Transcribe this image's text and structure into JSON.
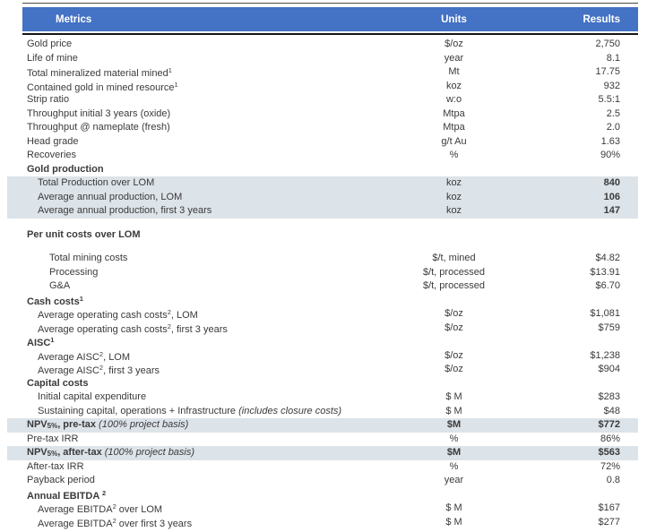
{
  "colors": {
    "header_bg": "#4472C4",
    "header_text": "#FFFFFF",
    "highlight_bg": "#DCE3E9",
    "text": "#3A3A3A",
    "rule_top": "#4A4A4A",
    "rule_header": "#161616"
  },
  "table": {
    "header": {
      "metrics": "Metrics",
      "units": "Units",
      "results": "Results"
    },
    "rows": [
      {
        "metric": [
          [
            "t",
            "Gold price"
          ]
        ],
        "unit": "$/oz",
        "result": "2,750"
      },
      {
        "metric": [
          [
            "t",
            "Life of mine"
          ]
        ],
        "unit": "year",
        "result": "8.1"
      },
      {
        "metric": [
          [
            "t",
            "Total mineralized material mined"
          ],
          [
            "sup",
            "1"
          ]
        ],
        "unit": "Mt",
        "result": "17.75"
      },
      {
        "metric": [
          [
            "t",
            "Contained gold in mined resource"
          ],
          [
            "sup",
            "1"
          ]
        ],
        "unit": "koz",
        "result": "932"
      },
      {
        "metric": [
          [
            "t",
            "Strip ratio"
          ]
        ],
        "unit": "w:o",
        "result": "5.5:1"
      },
      {
        "metric": [
          [
            "t",
            "Throughput initial 3 years (oxide)"
          ]
        ],
        "unit": "Mtpa",
        "result": "2.5"
      },
      {
        "metric": [
          [
            "t",
            "Throughput @ nameplate (fresh)"
          ]
        ],
        "unit": "Mtpa",
        "result": "2.0"
      },
      {
        "metric": [
          [
            "t",
            "Head grade"
          ]
        ],
        "unit": "g/t Au",
        "result": "1.63"
      },
      {
        "metric": [
          [
            "t",
            "Recoveries"
          ]
        ],
        "unit": "%",
        "result": "90%"
      },
      {
        "metric": [
          [
            "t",
            "Gold production"
          ]
        ],
        "unit": "",
        "result": "",
        "bold": true
      },
      {
        "metric": [
          [
            "t",
            "Total Production over LOM"
          ]
        ],
        "unit": "koz",
        "result": "840",
        "indent": 1,
        "highlight": true,
        "result_bold": true
      },
      {
        "metric": [
          [
            "t",
            "Average annual production, LOM"
          ]
        ],
        "unit": "koz",
        "result": "106",
        "indent": 1,
        "highlight": true,
        "result_bold": true
      },
      {
        "metric": [
          [
            "t",
            "Average annual production, first 3 years"
          ]
        ],
        "unit": "koz",
        "result": "147",
        "indent": 1,
        "highlight": true,
        "result_bold": true
      },
      {
        "metric": [
          [
            "t",
            "Per unit costs over LOM"
          ]
        ],
        "unit": "",
        "result": "",
        "bold": true,
        "gap_before": true
      },
      {
        "metric": [
          [
            "t",
            "Total mining costs"
          ]
        ],
        "unit": "$/t, mined",
        "result": "$4.82",
        "indent": 2,
        "gap_before": true
      },
      {
        "metric": [
          [
            "t",
            "Processing"
          ]
        ],
        "unit": "$/t, processed",
        "result": "$13.91",
        "indent": 2
      },
      {
        "metric": [
          [
            "t",
            "G&A"
          ]
        ],
        "unit": "$/t, processed",
        "result": "$6.70",
        "indent": 2
      },
      {
        "metric": [
          [
            "t",
            "Cash costs"
          ],
          [
            "sup",
            "1"
          ]
        ],
        "unit": "",
        "result": "",
        "bold": true
      },
      {
        "metric": [
          [
            "t",
            "Average operating cash costs"
          ],
          [
            "sup",
            "2"
          ],
          [
            "t",
            ", LOM"
          ]
        ],
        "unit": "$/oz",
        "result": "$1,081",
        "indent": 1
      },
      {
        "metric": [
          [
            "t",
            "Average operating cash costs"
          ],
          [
            "sup",
            "2"
          ],
          [
            "t",
            ", first 3 years"
          ]
        ],
        "unit": "$/oz",
        "result": "$759",
        "indent": 1
      },
      {
        "metric": [
          [
            "t",
            "AISC"
          ],
          [
            "sup",
            "1"
          ]
        ],
        "unit": "",
        "result": "",
        "bold": true
      },
      {
        "metric": [
          [
            "t",
            "Average AISC"
          ],
          [
            "sup",
            "2"
          ],
          [
            "t",
            ", LOM"
          ]
        ],
        "unit": "$/oz",
        "result": "$1,238",
        "indent": 1
      },
      {
        "metric": [
          [
            "t",
            "Average AISC"
          ],
          [
            "sup",
            "2"
          ],
          [
            "t",
            ", first 3 years"
          ]
        ],
        "unit": "$/oz",
        "result": "$904",
        "indent": 1
      },
      {
        "metric": [
          [
            "t",
            "Capital costs"
          ]
        ],
        "unit": "",
        "result": "",
        "bold": true
      },
      {
        "metric": [
          [
            "t",
            "Initial capital expenditure"
          ]
        ],
        "unit": "$ M",
        "result": "$283",
        "indent": 1
      },
      {
        "metric": [
          [
            "t",
            "Sustaining capital, operations + Infrastructure "
          ],
          [
            "i",
            "(includes closure costs)"
          ]
        ],
        "unit": "$ M",
        "result": "$48",
        "indent": 1
      },
      {
        "metric": [
          [
            "t",
            "NPV"
          ],
          [
            "sub",
            "5%"
          ],
          [
            "t",
            ", pre-tax "
          ],
          [
            "i",
            "(100% project basis)"
          ]
        ],
        "unit": "$M",
        "result": "$772",
        "bold": true,
        "highlight": true,
        "unit_bold": true,
        "result_bold": true
      },
      {
        "metric": [
          [
            "t",
            "Pre-tax IRR"
          ]
        ],
        "unit": "%",
        "result": "86%"
      },
      {
        "metric": [
          [
            "t",
            "NPV"
          ],
          [
            "sub",
            "5%"
          ],
          [
            "t",
            ", after-tax "
          ],
          [
            "i",
            "(100% project basis)"
          ]
        ],
        "unit": "$M",
        "result": "$563",
        "bold": true,
        "highlight": true,
        "unit_bold": true,
        "result_bold": true
      },
      {
        "metric": [
          [
            "t",
            "After-tax IRR"
          ]
        ],
        "unit": "%",
        "result": "72%"
      },
      {
        "metric": [
          [
            "t",
            "Payback period"
          ]
        ],
        "unit": "year",
        "result": "0.8"
      },
      {
        "metric": [
          [
            "t",
            "Annual EBITDA "
          ],
          [
            "sup",
            "2"
          ]
        ],
        "unit": "",
        "result": "",
        "bold": true
      },
      {
        "metric": [
          [
            "t",
            "Average EBITDA"
          ],
          [
            "sup",
            "2"
          ],
          [
            "t",
            " over LOM"
          ]
        ],
        "unit": "$ M",
        "result": "$167",
        "indent": 1
      },
      {
        "metric": [
          [
            "t",
            "Average EBITDA"
          ],
          [
            "sup",
            "2"
          ],
          [
            "t",
            " over first 3 years"
          ]
        ],
        "unit": "$ M",
        "result": "$277",
        "indent": 1
      }
    ]
  }
}
